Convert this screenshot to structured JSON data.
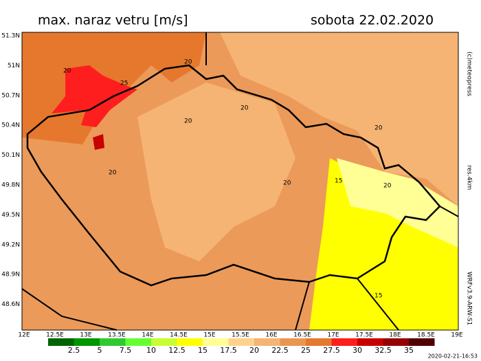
{
  "header": {
    "title": "max. naraz vetru [m/s]",
    "date": "sobota 22.02.2020"
  },
  "map": {
    "lat_labels": [
      "51.3N",
      "51N",
      "50.7N",
      "50.4N",
      "50.1N",
      "49.8N",
      "49.5N",
      "49.2N",
      "48.9N",
      "48.6N"
    ],
    "lon_labels": [
      "12E",
      "12.5E",
      "13E",
      "13.5E",
      "14E",
      "14.5E",
      "15E",
      "15.5E",
      "16E",
      "16.5E",
      "17E",
      "17.5E",
      "18E",
      "18.5E",
      "19E"
    ],
    "contour_labels": [
      "20",
      "25",
      "20",
      "20",
      "20",
      "20",
      "20",
      "20",
      "15",
      "20",
      "15"
    ]
  },
  "side": {
    "copyright": "(c)meteopress",
    "resolution": "res.4km",
    "model": "WRFv3.9-ARW-S1"
  },
  "colorbar": {
    "colors": [
      "#006400",
      "#009600",
      "#32c832",
      "#64ff32",
      "#c8ff32",
      "#ffff00",
      "#ffff96",
      "#ffd28c",
      "#f5b473",
      "#eb9650",
      "#e6782d",
      "#ff1e1e",
      "#c80000",
      "#960000",
      "#500000"
    ],
    "labels": [
      "2.5",
      "5",
      "7.5",
      "10",
      "12.5",
      "15",
      "17.5",
      "20",
      "22.5",
      "25",
      "27.5",
      "30",
      "32.5",
      "35"
    ]
  },
  "footer": {
    "timestamp": "2020-02-21-16:53"
  }
}
